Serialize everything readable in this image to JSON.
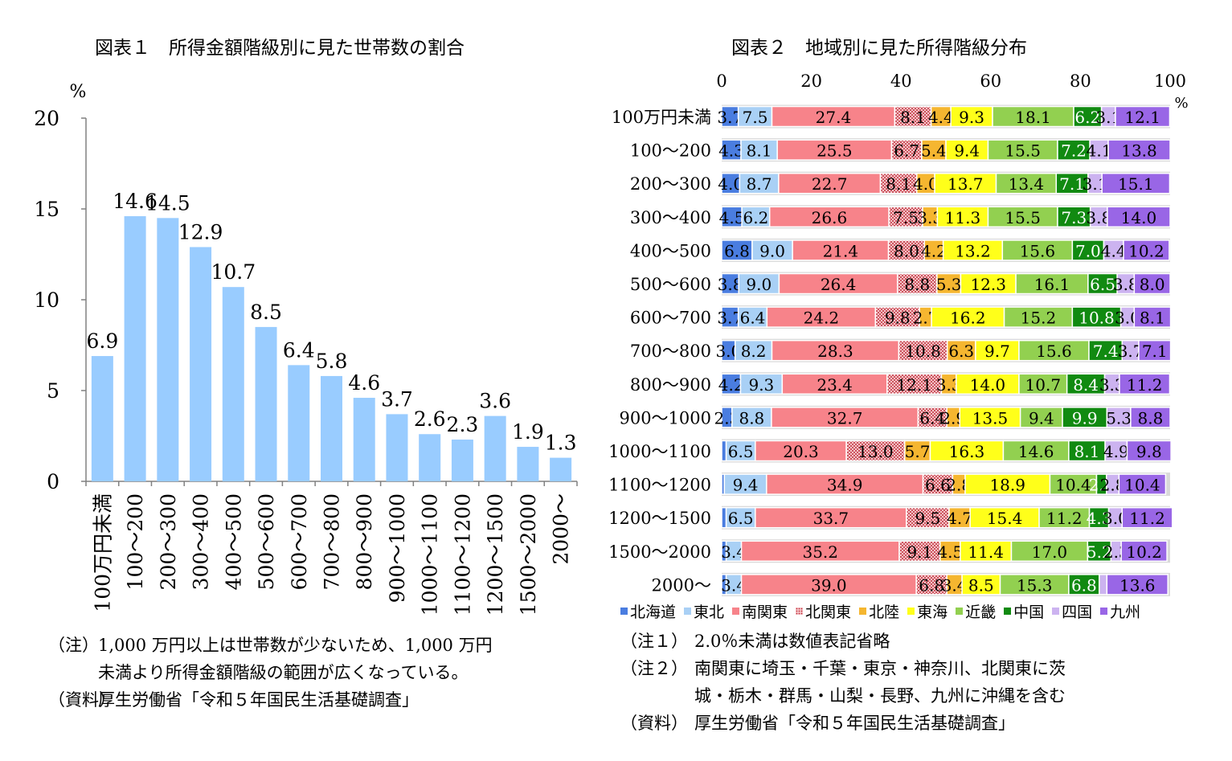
{
  "fig1": {
    "title": "図表１　所得金額階級別に見た世帯数の割合",
    "unit": "%",
    "notes": [
      {
        "label": "（注）",
        "lines": [
          "1,000 万円以上は世帯数が少ないため、1,000 万円",
          "未満より所得金額階級の範囲が広くなっている。"
        ]
      },
      {
        "label": "（資料）",
        "lines": [
          "厚生労働省「令和５年国民生活基礎調査」"
        ]
      }
    ]
  },
  "fig2": {
    "title": "図表２　地域別に見た所得階級分布",
    "unit": "%",
    "notes": [
      {
        "label": "（注１）",
        "lines": [
          "2.0％未満は数値表記省略"
        ]
      },
      {
        "label": "（注２）",
        "lines": [
          "南関東に埼玉・千葉・東京・神奈川、北関東に茨",
          "城・栃木・群馬・山梨・長野、九州に沖縄を含む"
        ]
      },
      {
        "label": "（資料）",
        "lines": [
          "厚生労働省「令和５年国民生活基礎調査」"
        ]
      }
    ]
  },
  "chart_data": [
    {
      "type": "bar",
      "title": "図表１　所得金額階級別に見た世帯数の割合",
      "ylabel": "%",
      "ylim": [
        0,
        20
      ],
      "yticks": [
        "0",
        "5",
        "10",
        "15",
        "20"
      ],
      "categories": [
        "100万円未満",
        "100～200",
        "200～300",
        "300～400",
        "400～500",
        "500～600",
        "600～700",
        "700～800",
        "800～900",
        "900～1000",
        "1000～1100",
        "1100～1200",
        "1200～1500",
        "1500～2000",
        "2000～"
      ],
      "values": [
        6.9,
        14.6,
        14.5,
        12.9,
        10.7,
        8.5,
        6.4,
        5.8,
        4.6,
        3.7,
        2.6,
        2.3,
        3.6,
        1.9,
        1.3
      ],
      "labels": [
        "6.9",
        "14.6",
        "14.5",
        "12.9",
        "10.7",
        "8.5",
        "6.4",
        "5.8",
        "4.6",
        "3.7",
        "2.6",
        "2.3",
        "3.6",
        "1.9",
        "1.3"
      ],
      "color": "#99ccff",
      "grid": false
    },
    {
      "type": "bar",
      "orientation": "horizontal-stacked",
      "title": "図表２　地域別に見た所得階級分布",
      "xlabel": "%",
      "xlim": [
        0,
        100
      ],
      "xticks": [
        "0",
        "20",
        "40",
        "60",
        "80",
        "100"
      ],
      "legend_position": "bottom",
      "categories": [
        "100万円未満",
        "100～200",
        "200～300",
        "300～400",
        "400～500",
        "500～600",
        "600～700",
        "700～800",
        "800～900",
        "900～1000",
        "1000～1100",
        "1100～1200",
        "1200～1500",
        "1500～2000",
        "2000～"
      ],
      "series": [
        {
          "name": "北海道",
          "color": "#4a7de0",
          "values": [
            3.7,
            4.3,
            4.0,
            4.5,
            6.8,
            3.8,
            3.7,
            3.0,
            4.2,
            2.3,
            1.0,
            0.6,
            1.0,
            1.0,
            1.0
          ],
          "labels": [
            "3.7",
            "4.3",
            "4.0",
            "4.5",
            "6.8",
            "3.8",
            "3.7",
            "3.0",
            "4.2",
            "2.3",
            "",
            "",
            "",
            "",
            ""
          ]
        },
        {
          "name": "東北",
          "color": "#a9d0f5",
          "values": [
            7.5,
            8.1,
            8.7,
            6.2,
            9.0,
            9.0,
            6.4,
            8.2,
            9.3,
            8.8,
            6.5,
            9.4,
            6.5,
            3.4,
            3.4
          ],
          "labels": [
            "7.5",
            "8.1",
            "8.7",
            "6.2",
            "9.0",
            "9.0",
            "6.4",
            "8.2",
            "9.3",
            "8.8",
            "6.5",
            "9.4",
            "6.5",
            "3.4",
            "3.4"
          ]
        },
        {
          "name": "南関東",
          "color": "#f7838a",
          "values": [
            27.4,
            25.5,
            22.7,
            26.6,
            21.4,
            26.4,
            24.2,
            28.3,
            23.4,
            32.7,
            20.3,
            34.9,
            33.7,
            35.2,
            39.0
          ],
          "labels": [
            "27.4",
            "25.5",
            "22.7",
            "26.6",
            "21.4",
            "26.4",
            "24.2",
            "28.3",
            "23.4",
            "32.7",
            "20.3",
            "34.9",
            "33.7",
            "35.2",
            "39.0"
          ]
        },
        {
          "name": "北関東",
          "color": "#e7a0a8",
          "pattern": "dots",
          "values": [
            8.1,
            6.7,
            8.1,
            7.5,
            8.0,
            8.8,
            9.8,
            10.8,
            12.1,
            6.4,
            13.0,
            6.6,
            9.5,
            9.1,
            6.8
          ],
          "labels": [
            "8.1",
            "6.7",
            "8.1",
            "7.5",
            "8.0",
            "8.8",
            "9.8",
            "10.8",
            "12.1",
            "6.4",
            "13.0",
            "6.6",
            "9.5",
            "9.1",
            "6.8"
          ]
        },
        {
          "name": "北陸",
          "color": "#f5b630",
          "values": [
            4.4,
            5.4,
            4.0,
            3.3,
            4.2,
            5.3,
            2.7,
            6.3,
            3.3,
            2.9,
            5.7,
            2.8,
            4.7,
            4.5,
            3.4
          ],
          "labels": [
            "4.4",
            "5.4",
            "4.0",
            "3.3",
            "4.2",
            "5.3",
            "2.7",
            "6.3",
            "3.3",
            "2.9",
            "5.7",
            "2.8",
            "4.7",
            "4.5",
            "3.4"
          ]
        },
        {
          "name": "東海",
          "color": "#ffff1a",
          "values": [
            9.3,
            9.4,
            13.7,
            11.3,
            13.2,
            12.3,
            16.2,
            9.7,
            14.0,
            13.5,
            16.3,
            18.9,
            15.4,
            11.4,
            8.5
          ],
          "labels": [
            "9.3",
            "9.4",
            "13.7",
            "11.3",
            "13.2",
            "12.3",
            "16.2",
            "9.7",
            "14.0",
            "13.5",
            "16.3",
            "18.9",
            "15.4",
            "11.4",
            "8.5"
          ]
        },
        {
          "name": "近畿",
          "color": "#92d050",
          "values": [
            18.1,
            15.5,
            13.4,
            15.5,
            15.6,
            16.1,
            15.2,
            15.6,
            10.7,
            9.4,
            14.6,
            10.4,
            11.2,
            17.0,
            15.3
          ],
          "labels": [
            "18.1",
            "15.5",
            "13.4",
            "15.5",
            "15.6",
            "16.1",
            "15.2",
            "15.6",
            "10.7",
            "9.4",
            "14.6",
            "10.4",
            "11.2",
            "17.0",
            "15.3"
          ]
        },
        {
          "name": "中国",
          "color": "#118a11",
          "values": [
            6.2,
            7.2,
            7.1,
            7.3,
            7.0,
            6.5,
            10.8,
            7.4,
            8.4,
            9.9,
            8.1,
            2.2,
            4.3,
            5.2,
            6.8
          ],
          "labels": [
            "6.2",
            "7.2",
            "7.1",
            "7.3",
            "7.0",
            "6.5",
            "10.8",
            "7.4",
            "8.4",
            "9.9",
            "8.1",
            "2.2",
            "4.3",
            "5.2",
            "6.8"
          ]
        },
        {
          "name": "四国",
          "color": "#ccb3f0",
          "values": [
            3.1,
            4.1,
            3.1,
            3.8,
            4.4,
            3.8,
            3.0,
            3.7,
            3.3,
            5.3,
            4.9,
            2.8,
            3.0,
            2.3,
            1.7
          ],
          "labels": [
            "3.1",
            "4.1",
            "3.1",
            "3.8",
            "4.4",
            "3.8",
            "3.0",
            "3.7",
            "3.3",
            "5.3",
            "4.9",
            "2.8",
            "3.0",
            "2.3",
            ""
          ]
        },
        {
          "name": "九州",
          "color": "#9966e6",
          "values": [
            12.1,
            13.8,
            15.1,
            14.0,
            10.2,
            8.0,
            8.1,
            7.1,
            11.2,
            8.8,
            9.8,
            10.4,
            11.2,
            10.2,
            13.6
          ],
          "labels": [
            "12.1",
            "13.8",
            "15.1",
            "14.0",
            "10.2",
            "8.0",
            "8.1",
            "7.1",
            "11.2",
            "8.8",
            "9.8",
            "10.4",
            "11.2",
            "10.2",
            "13.6"
          ]
        }
      ]
    }
  ]
}
